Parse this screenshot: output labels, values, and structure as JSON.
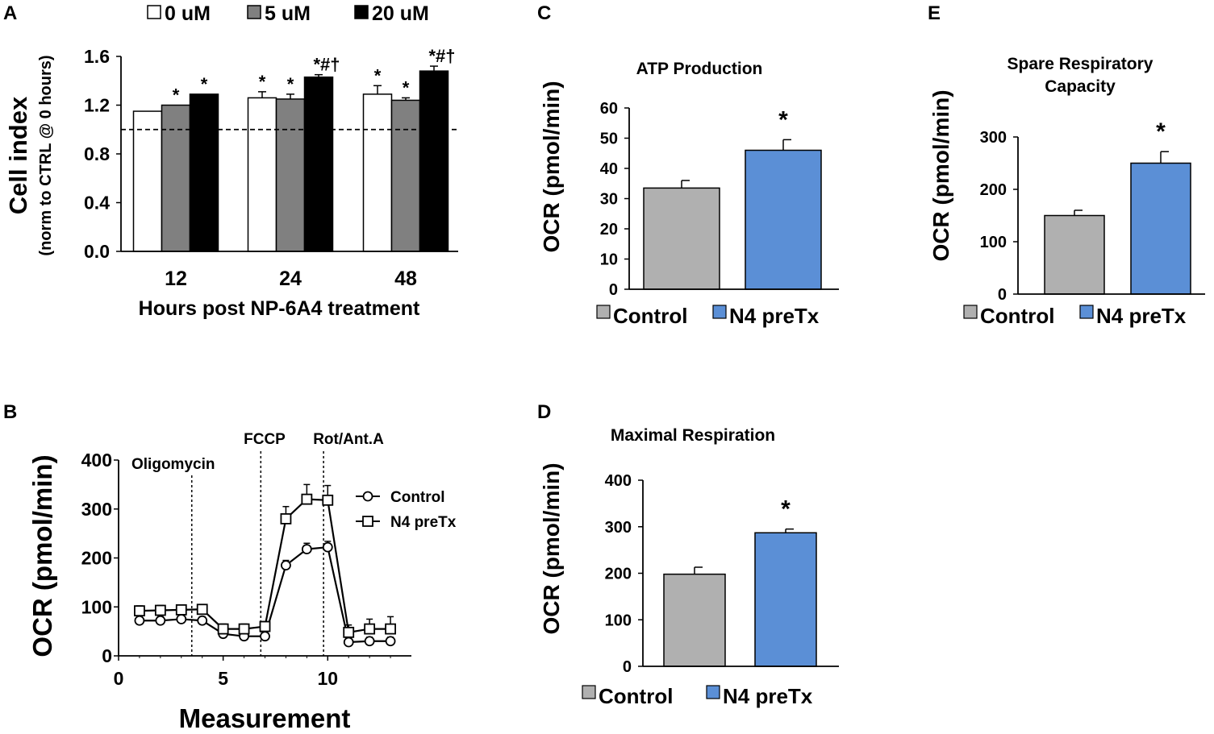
{
  "panels": {
    "A": {
      "letter": "A",
      "chart_data": {
        "type": "bar",
        "ylabel": "Cell index",
        "ylabel_sub": "(norm to CTRL @ 0 hours)",
        "xlabel": "Hours post NP-6A4 treatment",
        "categories": [
          "12",
          "24",
          "48"
        ],
        "ylim": [
          0.0,
          1.6
        ],
        "yticks": [
          "0.0",
          "0.4",
          "0.8",
          "1.2",
          "1.6"
        ],
        "reference_line": 1.0,
        "series": [
          {
            "name": "0 uM",
            "color": "#ffffff",
            "values": [
              1.15,
              1.26,
              1.29
            ],
            "errors": [
              0.0,
              0.05,
              0.07
            ],
            "annotations": [
              "",
              "*",
              "*"
            ]
          },
          {
            "name": "5 uM",
            "color": "#808080",
            "values": [
              1.2,
              1.25,
              1.24
            ],
            "errors": [
              0.0,
              0.04,
              0.02
            ],
            "annotations": [
              "*",
              "*",
              "*"
            ]
          },
          {
            "name": "20 uM",
            "color": "#000000",
            "values": [
              1.29,
              1.43,
              1.48
            ],
            "errors": [
              0.0,
              0.02,
              0.04
            ],
            "annotations": [
              "*",
              "*#†",
              "*#†"
            ]
          }
        ]
      }
    },
    "B": {
      "letter": "B",
      "chart_data": {
        "type": "line",
        "ylabel": "OCR (pmol/min)",
        "xlabel": "Measurement",
        "xlim": [
          0,
          14
        ],
        "xticks": [
          "0",
          "5",
          "10"
        ],
        "ylim": [
          0,
          400
        ],
        "yticks": [
          "0",
          "100",
          "200",
          "300",
          "400"
        ],
        "events": [
          {
            "label": "Oligomycin",
            "x": 3.5
          },
          {
            "label": "FCCP",
            "x": 6.8
          },
          {
            "label": "Rot/Ant.A",
            "x": 9.8
          }
        ],
        "x": [
          1,
          2,
          3,
          4,
          5,
          6,
          7,
          8,
          9,
          10,
          11,
          12,
          13
        ],
        "series": [
          {
            "name": "Control",
            "marker": "circle",
            "values": [
              72,
              72,
              75,
              72,
              45,
              40,
              40,
              185,
              218,
              222,
              28,
              30,
              30
            ],
            "errors": [
              8,
              8,
              8,
              8,
              8,
              8,
              8,
              10,
              12,
              12,
              8,
              8,
              8
            ]
          },
          {
            "name": "N4 preTx",
            "marker": "square",
            "values": [
              92,
              93,
              94,
              95,
              55,
              55,
              60,
              280,
              320,
              318,
              48,
              55,
              55
            ],
            "errors": [
              10,
              10,
              10,
              10,
              10,
              10,
              10,
              25,
              30,
              30,
              15,
              20,
              25
            ]
          }
        ]
      }
    },
    "C": {
      "letter": "C",
      "chart_data": {
        "type": "bar",
        "title": "ATP Production",
        "ylabel": "OCR (pmol/min)",
        "categories": [
          "Control",
          "N4 preTx"
        ],
        "ylim": [
          0,
          60
        ],
        "yticks": [
          "0",
          "10",
          "20",
          "30",
          "40",
          "50",
          "60"
        ],
        "values": [
          33.5,
          46
        ],
        "errors": [
          2.5,
          3.5
        ],
        "annotations": [
          "",
          "*"
        ],
        "colors": [
          "#b0b0b0",
          "#5b8fd6"
        ]
      }
    },
    "D": {
      "letter": "D",
      "chart_data": {
        "type": "bar",
        "title": "Maximal Respiration",
        "ylabel": "OCR (pmol/min)",
        "categories": [
          "Control",
          "N4 preTx"
        ],
        "ylim": [
          0,
          400
        ],
        "yticks": [
          "0",
          "100",
          "200",
          "300",
          "400"
        ],
        "values": [
          198,
          287
        ],
        "errors": [
          15,
          8
        ],
        "annotations": [
          "",
          "*"
        ],
        "colors": [
          "#b0b0b0",
          "#5b8fd6"
        ]
      }
    },
    "E": {
      "letter": "E",
      "chart_data": {
        "type": "bar",
        "title_lines": [
          "Spare Respiratory",
          "Capacity"
        ],
        "ylabel": "OCR (pmol/min)",
        "categories": [
          "Control",
          "N4 preTx"
        ],
        "ylim": [
          0,
          300
        ],
        "yticks": [
          "0",
          "100",
          "200",
          "300"
        ],
        "values": [
          150,
          250
        ],
        "errors": [
          10,
          22
        ],
        "annotations": [
          "",
          "*"
        ],
        "colors": [
          "#b0b0b0",
          "#5b8fd6"
        ]
      }
    }
  }
}
